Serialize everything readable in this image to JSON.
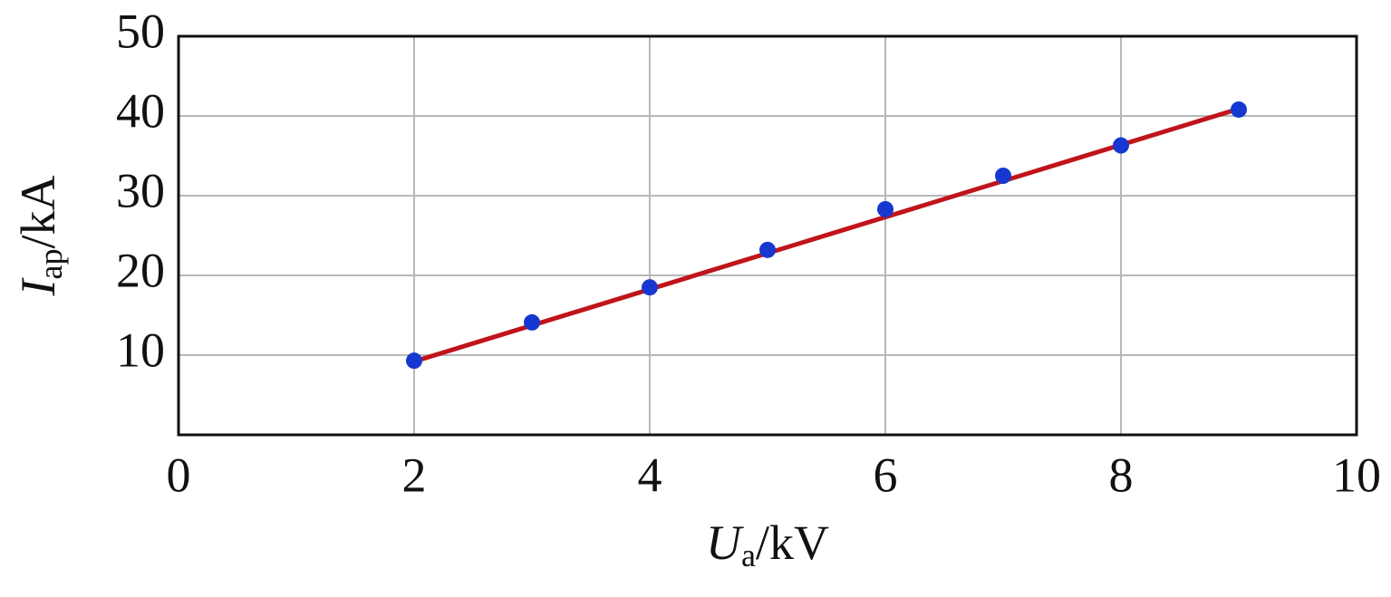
{
  "chart_data": {
    "type": "scatter",
    "xlabel": {
      "symbol": "U",
      "subscript": "a",
      "unit": "/kV"
    },
    "ylabel": {
      "symbol": "I",
      "subscript": "ap",
      "unit": "/kA"
    },
    "x": [
      2,
      3,
      4,
      5,
      6,
      7,
      8,
      9
    ],
    "series": [
      {
        "color": "#1638d0",
        "values": [
          9.3,
          14.1,
          18.5,
          23.2,
          28.3,
          32.5,
          36.3,
          40.8
        ]
      }
    ],
    "fit": {
      "color": "#c0141b",
      "x": [
        2,
        9
      ],
      "values": [
        9.2,
        40.9
      ]
    },
    "xlim": [
      0,
      10
    ],
    "xticks": [
      0,
      2,
      4,
      6,
      8,
      10
    ],
    "ylim": [
      0,
      50
    ],
    "yticks": [
      10,
      20,
      30,
      40,
      50
    ],
    "grid": true
  }
}
